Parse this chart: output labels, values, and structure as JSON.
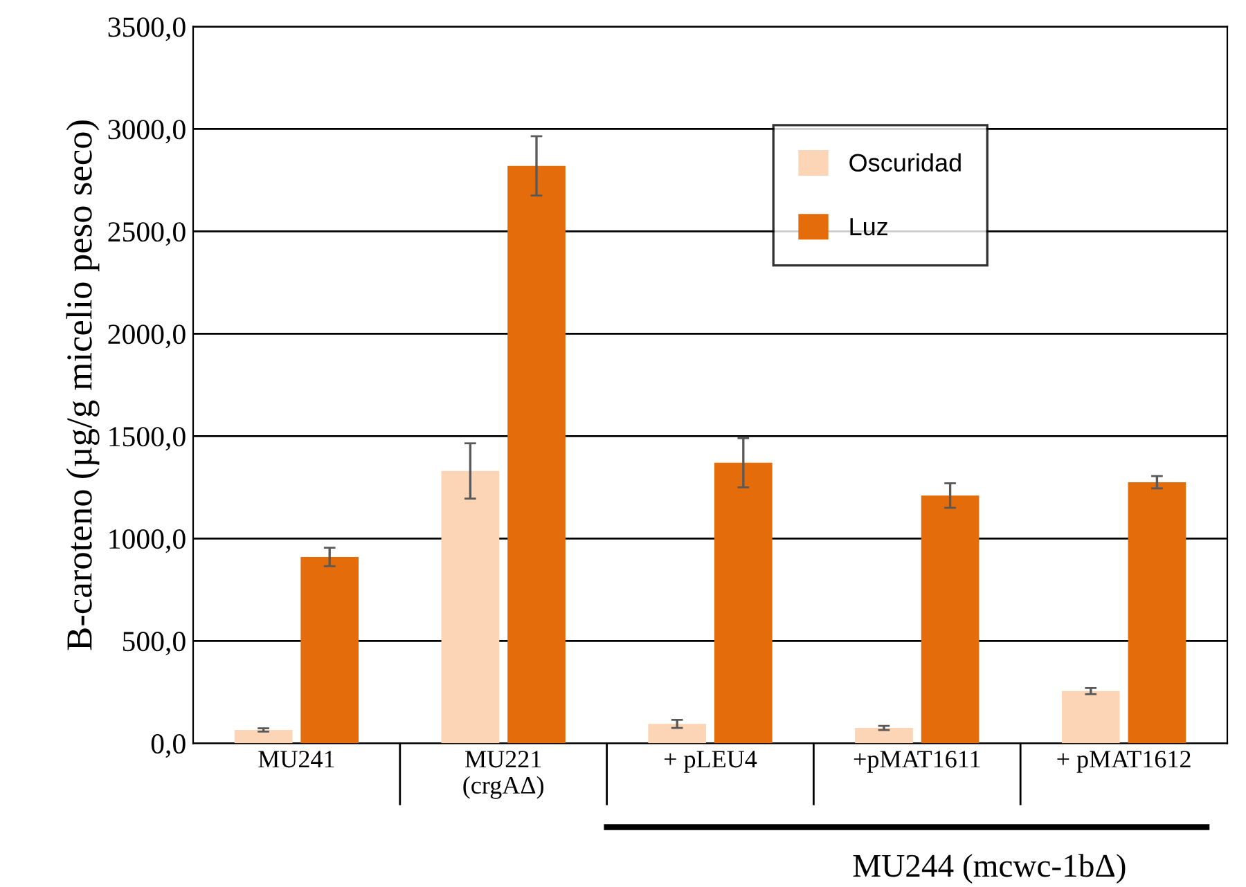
{
  "chart_data": {
    "type": "bar",
    "ylabel": "B-caroteno (µg/g micelio peso seco)",
    "categories": [
      "MU241",
      "MU221\n(crgAΔ)",
      "+ pLEU4",
      "+pMAT1611",
      "+ pMAT1612"
    ],
    "series": [
      {
        "name": "Oscuridad",
        "color": "#fbd5b5",
        "values": [
          65,
          1330,
          95,
          75,
          255
        ],
        "errors": [
          8,
          135,
          20,
          10,
          15
        ]
      },
      {
        "name": "Luz",
        "color": "#e46c0a",
        "values": [
          910,
          2820,
          1370,
          1210,
          1275
        ],
        "errors": [
          45,
          145,
          120,
          60,
          30
        ]
      }
    ],
    "ylim": [
      0,
      3500
    ],
    "yticks": [
      {
        "value": 0,
        "label": "0,0"
      },
      {
        "value": 500,
        "label": "500,0"
      },
      {
        "value": 1000,
        "label": "1000,0"
      },
      {
        "value": 1500,
        "label": "1500,0"
      },
      {
        "value": 2000,
        "label": "2000,0"
      },
      {
        "value": 2500,
        "label": "2500,0"
      },
      {
        "value": 3000,
        "label": "3000,0"
      },
      {
        "value": 3500,
        "label": "3500,0"
      }
    ],
    "grid": "y",
    "legend": "top right",
    "annotations": [
      "MU244 (mcwc-1bΔ)"
    ]
  }
}
